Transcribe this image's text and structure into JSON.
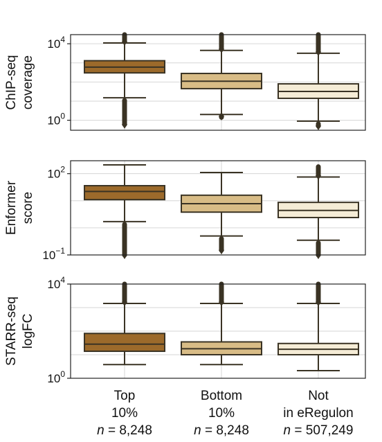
{
  "chart_data": [
    {
      "type": "box",
      "ylabel_lines": [
        "ChIP-seq",
        "coverage"
      ],
      "yscale": "log",
      "ylim": [
        0.3,
        30000
      ],
      "ticks": [
        {
          "value": 1,
          "base": "10",
          "exp": "0"
        },
        {
          "value": 10000,
          "base": "10",
          "exp": "4"
        }
      ],
      "gridlines": [
        1,
        10,
        100,
        1000,
        10000
      ],
      "boxes": [
        {
          "category": "Top 10%",
          "q1": 300,
          "median": 600,
          "q3": 1300,
          "whislo": 15,
          "whishi": 11000,
          "fliers_low_min": 0.6,
          "fliers_high_max": 30000
        },
        {
          "category": "Bottom 10%",
          "q1": 45,
          "median": 110,
          "q3": 280,
          "whislo": 2,
          "whishi": 4500,
          "fliers_low_min": 1.6,
          "fliers_high_max": 30000
        },
        {
          "category": "Not in eRegulon",
          "q1": 14,
          "median": 32,
          "q3": 80,
          "whislo": 0.9,
          "whishi": 3200,
          "fliers_low_min": 0.5,
          "fliers_high_max": 30000
        }
      ]
    },
    {
      "type": "box",
      "ylabel_lines": [
        "Enformer",
        "score"
      ],
      "yscale": "log",
      "ylim": [
        0.1,
        300
      ],
      "ticks": [
        {
          "value": 100,
          "base": "10",
          "exp": "2"
        },
        {
          "value": 0.1,
          "base": "10",
          "exp": "−1"
        }
      ],
      "gridlines": [
        0.1,
        1,
        10,
        100
      ],
      "boxes": [
        {
          "category": "Top 10%",
          "q1": 11,
          "median": 22,
          "q3": 36,
          "whislo": 1.7,
          "whishi": 210,
          "fliers_low_min": 0.1,
          "fliers_high_max": 210
        },
        {
          "category": "Bottom 10%",
          "q1": 3.8,
          "median": 7.8,
          "q3": 16,
          "whislo": 0.5,
          "whishi": 110,
          "fliers_low_min": 0.15,
          "fliers_high_max": 110
        },
        {
          "category": "Not in eRegulon",
          "q1": 2.4,
          "median": 4.4,
          "q3": 8.7,
          "whislo": 0.35,
          "whishi": 75,
          "fliers_low_min": 0.1,
          "fliers_high_max": 180
        }
      ]
    },
    {
      "type": "box",
      "ylabel_lines": [
        "STARR-seq",
        "logFC"
      ],
      "yscale": "log",
      "ylim": [
        1,
        10000
      ],
      "ticks": [
        {
          "value": 10000,
          "base": "10",
          "exp": "4"
        },
        {
          "value": 1,
          "base": "10",
          "exp": "0"
        }
      ],
      "gridlines": [
        1,
        10,
        100,
        1000,
        10000
      ],
      "boxes": [
        {
          "category": "Top 10%",
          "q1": 14,
          "median": 28,
          "q3": 80,
          "whislo": 3.8,
          "whishi": 1500,
          "fliers_low_min": 3.8,
          "fliers_high_max": 10000
        },
        {
          "category": "Bottom 10%",
          "q1": 10,
          "median": 18,
          "q3": 35,
          "whislo": 3.8,
          "whishi": 1500,
          "fliers_low_min": 3.8,
          "fliers_high_max": 10000
        },
        {
          "category": "Not in eRegulon",
          "q1": 10,
          "median": 17,
          "q3": 30,
          "whislo": 2.1,
          "whishi": 1500,
          "fliers_low_min": 2.1,
          "fliers_high_max": 10000
        }
      ]
    }
  ],
  "categories": [
    {
      "lines": [
        "Top",
        "10%"
      ],
      "n_prefix": "n",
      "n_text": " = 8,248",
      "color": "#9c6a2b"
    },
    {
      "lines": [
        "Bottom",
        "10%"
      ],
      "n_prefix": "n",
      "n_text": " = 8,248",
      "color": "#d8bc86"
    },
    {
      "lines": [
        "Not",
        "in eRegulon"
      ],
      "n_prefix": "n",
      "n_text": " = 507,249",
      "color": "#f5ecd6"
    }
  ],
  "colors": {
    "outline": "#3a3324",
    "grid": "#d6d6d6",
    "frame": "#222222"
  }
}
